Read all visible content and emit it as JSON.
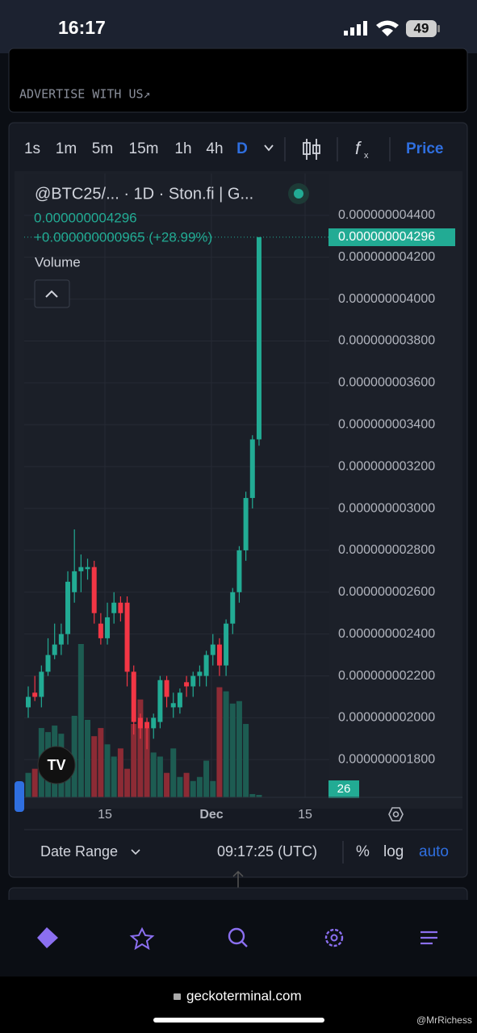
{
  "status": {
    "time": "16:17",
    "battery": "49"
  },
  "ad": "ADVERTISE WITH US↗",
  "timeframes": [
    "1s",
    "1m",
    "5m",
    "15m",
    "1h",
    "4h",
    "D"
  ],
  "price_tab": "Price",
  "chart_data": {
    "type": "candlestick",
    "title": "@BTC25/... · 1D · Ston.fi | G...",
    "last_price": "0.000000004296",
    "change": "+0.000000000965 (+28.99%)",
    "volume_label": "Volume",
    "price_tag": "0.000000004296",
    "countdown": "26",
    "x_labels": [
      "15",
      "Dec",
      "15"
    ],
    "up_color": "#22ab94",
    "down_color": "#f23645",
    "ylim": [
      1.62e-09,
      4.6e-09
    ],
    "yticks": [
      {
        "value": 4.4e-09,
        "label": "0.000000004400"
      },
      {
        "value": 4.2e-09,
        "label": "0.000000004200"
      },
      {
        "value": 4e-09,
        "label": "0.000000004000"
      },
      {
        "value": 3.8e-09,
        "label": "0.000000003800"
      },
      {
        "value": 3.6e-09,
        "label": "0.000000003600"
      },
      {
        "value": 3.4e-09,
        "label": "0.000000003400"
      },
      {
        "value": 3.2e-09,
        "label": "0.000000003200"
      },
      {
        "value": 3e-09,
        "label": "0.000000003000"
      },
      {
        "value": 2.8e-09,
        "label": "0.000000002800"
      },
      {
        "value": 2.6e-09,
        "label": "0.000000002600"
      },
      {
        "value": 2.4e-09,
        "label": "0.000000002400"
      },
      {
        "value": 2.2e-09,
        "label": "0.000000002200"
      },
      {
        "value": 2e-09,
        "label": "0.000000002000"
      },
      {
        "value": 1.8e-09,
        "label": "0.000000001800"
      }
    ],
    "open": [
      2.05e-09,
      2.12e-09,
      2.1e-09,
      2.22e-09,
      2.3e-09,
      2.35e-09,
      2.4e-09,
      2.6e-09,
      2.7e-09,
      2.71e-09,
      2.72e-09,
      2.45e-09,
      2.38e-09,
      2.5e-09,
      2.55e-09,
      2.55e-09,
      2.22e-09,
      2e-09,
      1.98e-09,
      1.95e-09,
      1.98e-09,
      2.18e-09,
      2.05e-09,
      2.05e-09,
      2.17e-09,
      2.15e-09,
      2.2e-09,
      2.2e-09,
      2.3e-09,
      2.35e-09,
      2.25e-09,
      2.45e-09,
      2.6e-09,
      2.8e-09,
      3.05e-09,
      3.33e-09
    ],
    "high": [
      2.15e-09,
      2.2e-09,
      2.25e-09,
      2.38e-09,
      2.45e-09,
      2.45e-09,
      2.7e-09,
      2.9e-09,
      2.78e-09,
      2.76e-09,
      2.75e-09,
      2.5e-09,
      2.55e-09,
      2.6e-09,
      2.58e-09,
      2.58e-09,
      2.25e-09,
      2.02e-09,
      2e-09,
      2.02e-09,
      2.2e-09,
      2.2e-09,
      2.12e-09,
      2.14e-09,
      2.2e-09,
      2.22e-09,
      2.25e-09,
      2.32e-09,
      2.4e-09,
      2.38e-09,
      2.47e-09,
      2.62e-09,
      2.82e-09,
      3.08e-09,
      3.35e-09,
      4.296e-09
    ],
    "low": [
      2e-09,
      2.08e-09,
      2.05e-09,
      2.2e-09,
      2.28e-09,
      2.3e-09,
      2.35e-09,
      2.55e-09,
      2.6e-09,
      2.66e-09,
      2.45e-09,
      2.35e-09,
      2.35e-09,
      2.45e-09,
      2.46e-09,
      2.15e-09,
      1.92e-09,
      1.9e-09,
      1.85e-09,
      1.9e-09,
      1.95e-09,
      2.05e-09,
      2e-09,
      2.02e-09,
      2.1e-09,
      2.1e-09,
      2.15e-09,
      2.15e-09,
      2.25e-09,
      2.2e-09,
      2.2e-09,
      2.4e-09,
      2.55e-09,
      2.75e-09,
      3e-09,
      3.3e-09
    ],
    "close": [
      2.1e-09,
      2.1e-09,
      2.22e-09,
      2.3e-09,
      2.35e-09,
      2.4e-09,
      2.65e-09,
      2.7e-09,
      2.72e-09,
      2.72e-09,
      2.5e-09,
      2.38e-09,
      2.48e-09,
      2.55e-09,
      2.5e-09,
      2.22e-09,
      1.98e-09,
      1.95e-09,
      1.95e-09,
      2e-09,
      2.18e-09,
      2.1e-09,
      2.07e-09,
      2.12e-09,
      2.15e-09,
      2.2e-09,
      2.22e-09,
      2.3e-09,
      2.35e-09,
      2.25e-09,
      2.45e-09,
      2.6e-09,
      2.8e-09,
      3.05e-09,
      3.33e-09,
      4.296e-09
    ],
    "volume": [
      30,
      35,
      85,
      80,
      88,
      78,
      40,
      100,
      188,
      95,
      75,
      85,
      65,
      50,
      60,
      35,
      90,
      120,
      85,
      55,
      50,
      30,
      60,
      25,
      30,
      20,
      25,
      45,
      20,
      135,
      130,
      115,
      118,
      90,
      4,
      3
    ]
  },
  "toolbar": {
    "date_range": "Date Range",
    "time": "09:17:25 (UTC)",
    "percent": "%",
    "log": "log",
    "auto": "auto"
  },
  "url": "geckoterminal.com",
  "watermark": "@MrRichess"
}
